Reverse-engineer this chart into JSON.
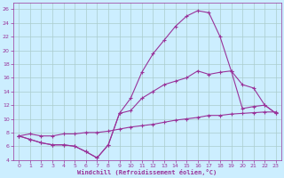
{
  "xlabel": "Windchill (Refroidissement éolien,°C)",
  "bg_color": "#cceeff",
  "grid_color": "#aacccc",
  "line_color": "#993399",
  "xlim": [
    -0.5,
    23.5
  ],
  "ylim": [
    4,
    27
  ],
  "xticks": [
    0,
    1,
    2,
    3,
    4,
    5,
    6,
    7,
    8,
    9,
    10,
    11,
    12,
    13,
    14,
    15,
    16,
    17,
    18,
    19,
    20,
    21,
    22,
    23
  ],
  "yticks": [
    4,
    6,
    8,
    10,
    12,
    14,
    16,
    18,
    20,
    22,
    24,
    26
  ],
  "line1_x": [
    0,
    1,
    2,
    3,
    4,
    5,
    6,
    7,
    8,
    9,
    10,
    11,
    12,
    13,
    14,
    15,
    16,
    17,
    18,
    19,
    20,
    21,
    22,
    23
  ],
  "line1_y": [
    7.5,
    7.0,
    6.5,
    6.2,
    6.2,
    6.0,
    5.2,
    4.3,
    6.2,
    10.8,
    13.0,
    16.8,
    19.5,
    21.5,
    23.5,
    25.0,
    25.8,
    25.5,
    22.0,
    17.0,
    15.0,
    14.5,
    12.0,
    10.8
  ],
  "line2_x": [
    0,
    1,
    2,
    3,
    4,
    5,
    6,
    7,
    8,
    9,
    10,
    11,
    12,
    13,
    14,
    15,
    16,
    17,
    18,
    19,
    20,
    21,
    22,
    23
  ],
  "line2_y": [
    7.5,
    7.0,
    6.5,
    6.2,
    6.2,
    6.0,
    5.2,
    4.3,
    6.2,
    10.8,
    11.2,
    13.0,
    14.0,
    15.0,
    15.5,
    16.0,
    17.0,
    16.5,
    16.8,
    17.0,
    11.5,
    11.8,
    12.0,
    10.8
  ],
  "line3_x": [
    0,
    1,
    2,
    3,
    4,
    5,
    6,
    7,
    8,
    9,
    10,
    11,
    12,
    13,
    14,
    15,
    16,
    17,
    18,
    19,
    20,
    21,
    22,
    23
  ],
  "line3_y": [
    7.5,
    7.8,
    7.5,
    7.5,
    7.8,
    7.8,
    8.0,
    8.0,
    8.2,
    8.5,
    8.8,
    9.0,
    9.2,
    9.5,
    9.8,
    10.0,
    10.2,
    10.5,
    10.5,
    10.7,
    10.8,
    10.9,
    11.0,
    11.0
  ]
}
